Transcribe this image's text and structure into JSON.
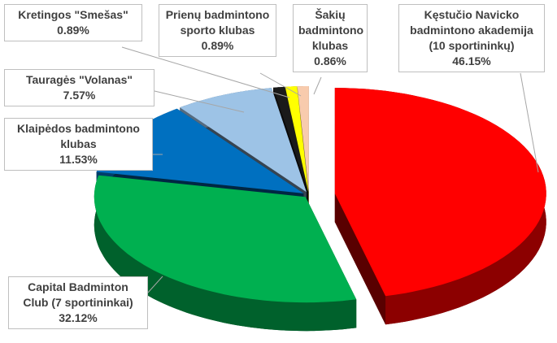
{
  "chart_data": {
    "type": "pie",
    "categories": [
      "Kęstučio Navicko badmintono akademija (10 sportininkų)",
      "Capital Badminton Club (7 sportininkai)",
      "Klaipėdos badmintono klubas",
      "Tauragės \"Volanas\"",
      "Kretingos \"Smešas\"",
      "Prienų badmintono sporto klubas",
      "Šakių badmintono klubas"
    ],
    "values": [
      46.15,
      32.12,
      11.53,
      7.57,
      0.89,
      0.89,
      0.86
    ],
    "value_labels": [
      "46.15%",
      "32.12%",
      "11.53%",
      "7.57%",
      "0.89%",
      "0.89%",
      "0.86%"
    ],
    "colors": [
      "#ff0000",
      "#00b050",
      "#0070c0",
      "#9dc3e6",
      "#1a1a1a",
      "#ffff00",
      "#f8cbad"
    ]
  }
}
